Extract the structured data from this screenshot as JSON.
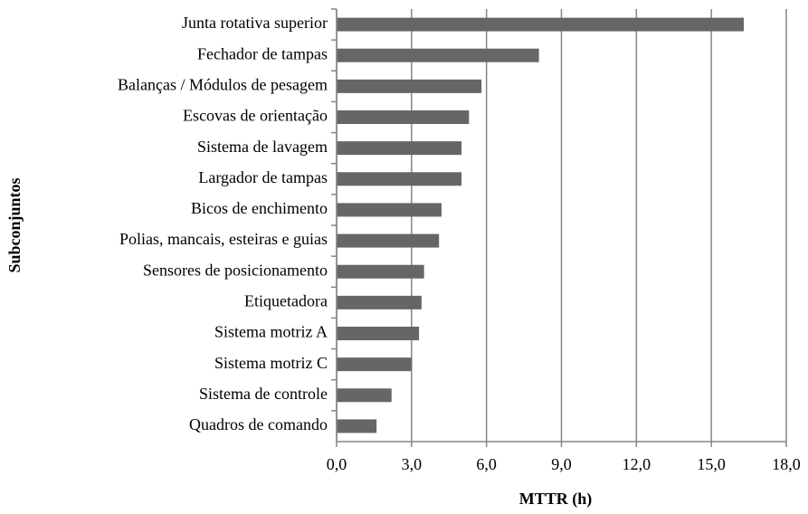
{
  "chart_data": {
    "type": "hbar",
    "xlabel": "MTTR (h)",
    "ylabel": "Subconjuntos",
    "categories": [
      "Junta rotativa superior",
      "Fechador de tampas",
      "Balanças / Módulos de pesagem",
      "Escovas de orientação",
      "Sistema de lavagem",
      "Largador de tampas",
      "Bicos de enchimento",
      "Polias, mancais, esteiras e guias",
      "Sensores de posicionamento",
      "Etiquetadora",
      "Sistema motriz A",
      "Sistema motriz C",
      "Sistema de controle",
      "Quadros de comando"
    ],
    "values": [
      16.3,
      8.1,
      5.8,
      5.3,
      5.0,
      5.0,
      4.2,
      4.1,
      3.5,
      3.4,
      3.3,
      3.0,
      2.2,
      1.6
    ],
    "color": "#666666",
    "xlim": [
      0,
      18
    ],
    "xticks": [
      {
        "value": 0,
        "label": "0,0"
      },
      {
        "value": 3,
        "label": "3,0"
      },
      {
        "value": 6,
        "label": "6,0"
      },
      {
        "value": 9,
        "label": "9,0"
      },
      {
        "value": 12,
        "label": "12,0"
      },
      {
        "value": 15,
        "label": "15,0"
      },
      {
        "value": 18,
        "label": "18,0"
      }
    ],
    "grid": true
  }
}
